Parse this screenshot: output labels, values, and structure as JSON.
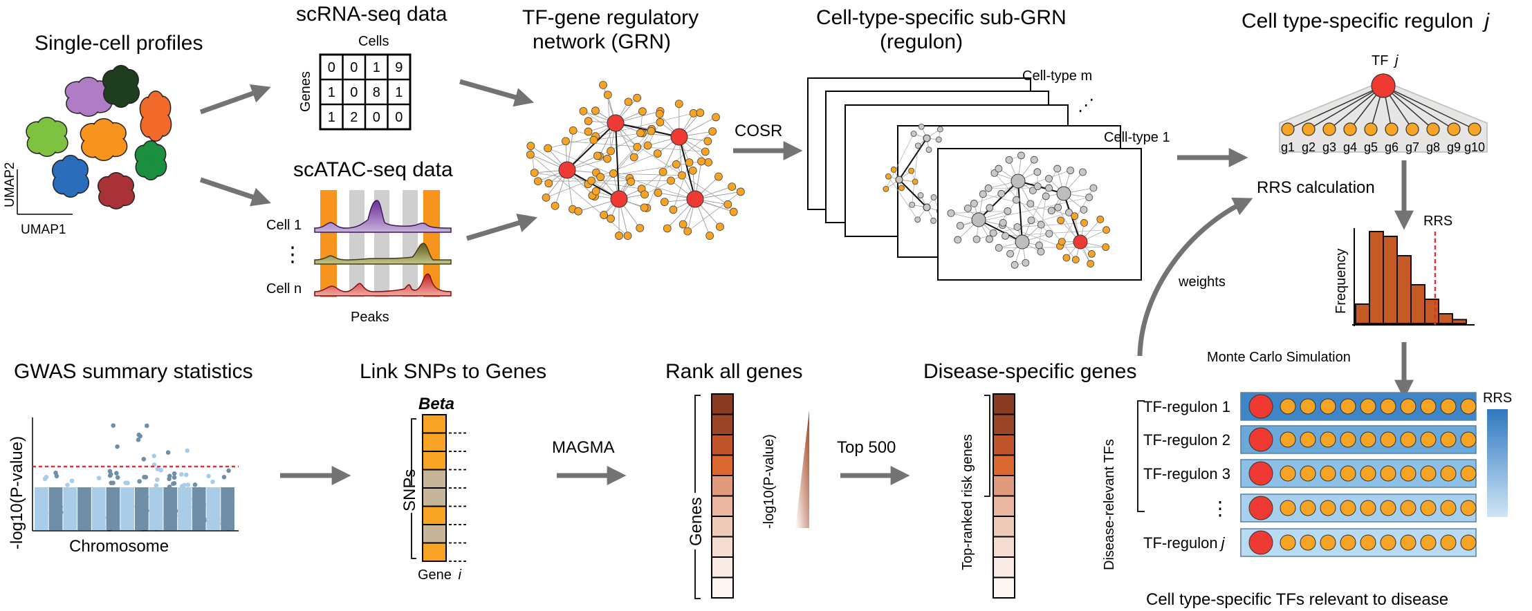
{
  "single_cell": {
    "title": "Single-cell profiles",
    "axis_y": "UMAP2",
    "axis_x": "UMAP1",
    "cluster_colors": [
      "#b07cc6",
      "#1f3d1f",
      "#f26a2a",
      "#7fc241",
      "#f7941d",
      "#1b8f3e",
      "#2a6ebb",
      "#a83236"
    ]
  },
  "scrna": {
    "title": "scRNA-seq data",
    "cols_label": "Cells",
    "rows_label": "Genes",
    "matrix": [
      [
        "0",
        "0",
        "1",
        "9"
      ],
      [
        "1",
        "0",
        "8",
        "1"
      ],
      [
        "1",
        "2",
        "0",
        "0"
      ]
    ]
  },
  "scatac": {
    "title": "scATAC-seq data",
    "cell1": "Cell 1",
    "dots": "⋮",
    "celln": "Cell n",
    "peaks": "Peaks"
  },
  "grn": {
    "title_line1": "TF-gene regulatory",
    "title_line2": "network (GRN)"
  },
  "cosr": {
    "label": "COSR"
  },
  "subgrn": {
    "title_line1": "Cell-type-specific sub-GRN",
    "title_line2": "(regulon)",
    "celltype_m": "Cell-type m",
    "celltype_1": "Cell-type 1",
    "dots": "⋰"
  },
  "regulon": {
    "title": "Cell type-specific regulon",
    "title_j": "j",
    "tf_label": "TF",
    "tf_j": "j",
    "genes": [
      "g1",
      "g2",
      "g3",
      "g4",
      "g5",
      "g6",
      "g7",
      "g8",
      "g9",
      "g10"
    ]
  },
  "rrs": {
    "calc_label": "RRS calculation",
    "weights_label": "weights",
    "rrs_marker": "RRS",
    "freq_label": "Frequency",
    "monte_carlo": "Monte Carlo Simulation"
  },
  "histogram": {
    "values": [
      2,
      9.5,
      9,
      7,
      4,
      2.5,
      1,
      0.4
    ]
  },
  "gwas": {
    "title": "GWAS summary statistics",
    "ylabel": "-log10(P-value)",
    "xlabel": "Chromosome"
  },
  "link": {
    "title": "Link SNPs to Genes",
    "beta": "Beta",
    "snps": "SNPs",
    "gene_prefix": "Gene",
    "gene_i": "i"
  },
  "magma": {
    "label": "MAGMA"
  },
  "rank": {
    "title": "Rank all genes",
    "genes_label": "Genes",
    "pval_label": "-log10(P-value)",
    "colors": [
      "#8a3b22",
      "#9b4528",
      "#c0542a",
      "#d9692f",
      "#e19a7c",
      "#ebb6a0",
      "#f0cab8",
      "#f5ddd1",
      "#f9ebe4",
      "#fdf6f2"
    ]
  },
  "top500": {
    "label": "Top 500"
  },
  "disease": {
    "title": "Disease-specific genes",
    "risk_label": "Top-ranked risk genes",
    "colors": [
      "#8a3b22",
      "#9b4528",
      "#c0542a",
      "#d9692f",
      "#e19a7c",
      "#ebb6a0",
      "#f0cab8",
      "#f5ddd1",
      "#f9ebe4",
      "#fdf6f2"
    ]
  },
  "tfs": {
    "side_label": "Disease-relevant TFs",
    "rows": [
      "TF-regulon 1",
      "TF-regulon 2",
      "TF-regulon 3",
      "⋮",
      "TF-regulon"
    ],
    "last_j": "j",
    "legend": "RRS",
    "bottom_title": "Cell type-specific TFs relevant to disease",
    "row_colors": [
      "#3f86c8",
      "#6aa9da",
      "#8cc0e6",
      "#a7d0ee",
      "#b9dbf2"
    ]
  },
  "palette": {
    "hub": "#ee3a32",
    "gene": "#f7a324",
    "gray_node": "#c8c8c8",
    "arrow": "#737373",
    "threshold": "#e03030"
  }
}
